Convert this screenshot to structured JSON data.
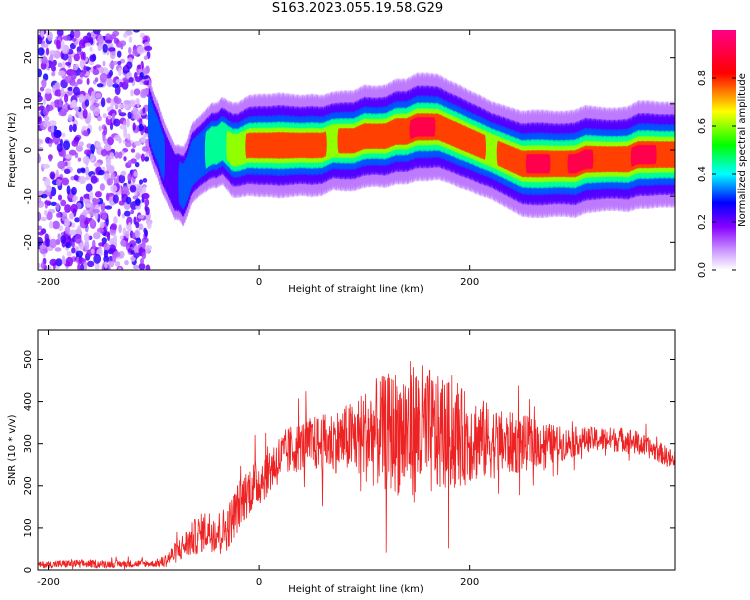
{
  "page": {
    "title": "S163.2023.055.19.58.G29"
  },
  "colors": {
    "snr_line": "#ee2222",
    "axis": "#000000",
    "background": "#ffffff"
  },
  "chart_data": [
    {
      "type": "heatmap",
      "title": "S163.2023.055.19.58.G29",
      "xlabel": "Height of straight line (km)",
      "ylabel": "Frequency (Hz)",
      "xlim": [
        -210,
        395
      ],
      "ylim": [
        -26,
        26
      ],
      "xticks": [
        -200,
        0,
        200
      ],
      "yticks": [
        -20,
        -10,
        0,
        10,
        20
      ],
      "colorbar": {
        "label": "Normalized spectral amplitude",
        "range": [
          0,
          1
        ],
        "ticks": [
          0.0,
          0.2,
          0.4,
          0.6,
          0.8
        ],
        "colormap": [
          "#ffffff",
          "#8800ff",
          "#0000ff",
          "#00ffff",
          "#00ff00",
          "#ffff00",
          "#ff0000",
          "#ff0080"
        ]
      },
      "noise_region_x": [
        -210,
        -104
      ],
      "ridge": {
        "x": [
          -104,
          -100,
          -96,
          -92,
          -88,
          -84,
          -80,
          -76,
          -72,
          -68,
          -64,
          -60,
          -55,
          -50,
          -45,
          -40,
          -35,
          -30,
          -25,
          -20,
          -10,
          0,
          10,
          20,
          30,
          40,
          50,
          60,
          70,
          80,
          90,
          100,
          110,
          120,
          130,
          140,
          150,
          160,
          170,
          180,
          190,
          200,
          210,
          220,
          230,
          240,
          250,
          260,
          270,
          280,
          290,
          300,
          310,
          320,
          330,
          340,
          350,
          360,
          370,
          380,
          395
        ],
        "y": [
          7,
          4,
          2,
          -1,
          -3,
          -5,
          -7,
          -7,
          -8,
          -6,
          -3,
          -2,
          -1,
          0,
          1,
          1,
          2,
          1,
          0,
          0,
          1,
          1,
          1,
          1,
          1,
          1,
          1,
          1,
          2,
          2,
          2,
          3,
          3,
          3,
          4,
          4,
          5,
          5,
          5,
          4,
          3,
          2,
          1,
          0,
          -1,
          -2,
          -3,
          -3,
          -3,
          -3,
          -3,
          -3,
          -2,
          -2,
          -2,
          -2,
          -2,
          -1,
          -1,
          -1,
          -1
        ],
        "amplitude": [
          0.35,
          0.35,
          0.35,
          0.35,
          0.3,
          0.3,
          0.3,
          0.3,
          0.4,
          0.35,
          0.4,
          0.4,
          0.4,
          0.45,
          0.5,
          0.5,
          0.55,
          0.6,
          0.7,
          0.7,
          0.8,
          0.85,
          0.85,
          0.9,
          0.85,
          0.8,
          0.85,
          0.8,
          0.75,
          0.8,
          0.8,
          0.85,
          0.8,
          0.85,
          0.9,
          0.9,
          0.95,
          0.95,
          0.9,
          0.85,
          0.85,
          0.8,
          0.8,
          0.75,
          0.8,
          0.85,
          0.9,
          0.95,
          0.95,
          0.9,
          0.9,
          0.95,
          0.95,
          0.9,
          0.85,
          0.85,
          0.9,
          0.95,
          0.95,
          0.9,
          0.9
        ]
      }
    },
    {
      "type": "line",
      "xlabel": "Height of straight line (km)",
      "ylabel": "SNR (10 * v/v)",
      "xlim": [
        -210,
        395
      ],
      "ylim": [
        0,
        570
      ],
      "xticks": [
        -200,
        0,
        200
      ],
      "yticks": [
        0,
        100,
        200,
        300,
        400,
        500
      ],
      "series": [
        {
          "x": [
            -210,
            -180,
            -150,
            -120,
            -100,
            -90,
            -80,
            -70,
            -60,
            -50,
            -40,
            -30,
            -20,
            -10,
            0,
            10,
            20,
            30,
            40,
            50,
            60,
            70,
            80,
            90,
            100,
            110,
            120,
            130,
            140,
            150,
            160,
            170,
            180,
            190,
            200,
            210,
            220,
            230,
            240,
            250,
            260,
            270,
            280,
            290,
            300,
            310,
            320,
            330,
            340,
            350,
            360,
            370,
            380,
            390,
            395
          ],
          "values": [
            12,
            15,
            14,
            15,
            15,
            20,
            40,
            60,
            80,
            95,
            90,
            100,
            150,
            190,
            210,
            240,
            265,
            285,
            295,
            300,
            300,
            305,
            310,
            315,
            320,
            325,
            325,
            330,
            330,
            330,
            325,
            320,
            320,
            315,
            315,
            310,
            305,
            300,
            300,
            300,
            300,
            300,
            300,
            300,
            305,
            310,
            310,
            310,
            310,
            310,
            300,
            290,
            280,
            265,
            250
          ],
          "noise_amplitude": [
            8,
            10,
            9,
            9,
            8,
            15,
            25,
            35,
            45,
            50,
            50,
            55,
            60,
            60,
            60,
            60,
            60,
            60,
            60,
            65,
            70,
            75,
            80,
            90,
            110,
            130,
            140,
            150,
            170,
            170,
            160,
            140,
            130,
            120,
            110,
            100,
            90,
            80,
            75,
            70,
            60,
            55,
            45,
            40,
            35,
            30,
            30,
            30,
            30,
            30,
            30,
            25,
            25,
            25,
            25
          ]
        }
      ]
    }
  ]
}
